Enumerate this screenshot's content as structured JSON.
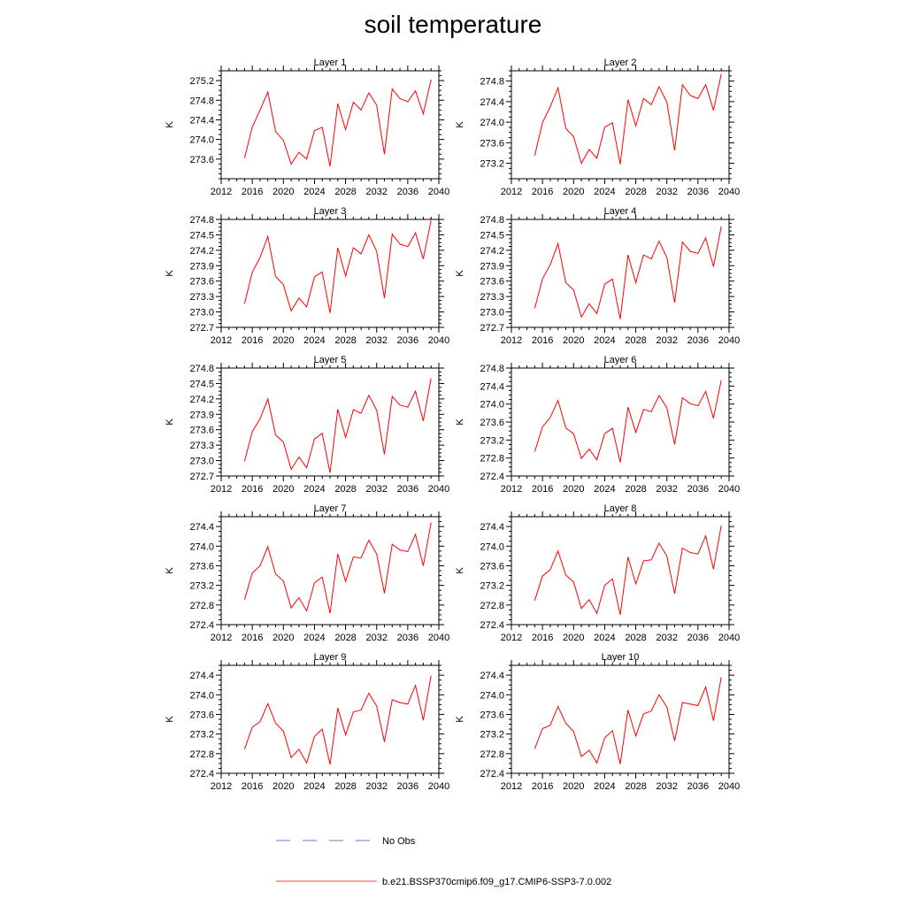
{
  "title": "soil temperature",
  "colors": {
    "model_line": "#ff0000",
    "obs_line": "#3b4fd0"
  },
  "legend": [
    {
      "label": "No Obs",
      "style": "dashed",
      "color": "#3b4fd0"
    },
    {
      "label": "b.e21.BSSP370cmip6.f09_g17.CMIP6-SSP3-7.0.002",
      "style": "solid",
      "color": "#ff0000"
    }
  ],
  "chart_data": [
    {
      "type": "line",
      "title": "Layer 1",
      "ylabel": "K",
      "xlim": [
        2012,
        2040
      ],
      "ylim": [
        273.2,
        275.4
      ],
      "xticks": [
        "2012",
        "2016",
        "2020",
        "2024",
        "2028",
        "2032",
        "2036",
        "2040"
      ],
      "yticks": [
        "273.6",
        "274.0",
        "274.4",
        "274.8",
        "275.2"
      ],
      "x": [
        2015,
        2016,
        2017,
        2018,
        2019,
        2020,
        2021,
        2022,
        2023,
        2024,
        2025,
        2026,
        2027,
        2028,
        2029,
        2030,
        2031,
        2032,
        2033,
        2034,
        2035,
        2036,
        2037,
        2038,
        2039
      ],
      "series": [
        {
          "values": [
            273.62,
            274.25,
            274.6,
            274.97,
            274.16,
            273.98,
            273.5,
            273.74,
            273.6,
            274.18,
            274.25,
            273.45,
            274.73,
            274.2,
            274.76,
            274.6,
            274.95,
            274.7,
            273.7,
            275.03,
            274.83,
            274.77,
            274.99,
            274.52,
            275.22
          ]
        }
      ]
    },
    {
      "type": "line",
      "title": "Layer 2",
      "ylabel": "K",
      "xlim": [
        2012,
        2040
      ],
      "ylim": [
        272.9,
        275.0
      ],
      "xticks": [
        "2012",
        "2016",
        "2020",
        "2024",
        "2028",
        "2032",
        "2036",
        "2040"
      ],
      "yticks": [
        "273.2",
        "273.6",
        "274.0",
        "274.4",
        "274.8"
      ],
      "x": [
        2015,
        2016,
        2017,
        2018,
        2019,
        2020,
        2021,
        2022,
        2023,
        2024,
        2025,
        2026,
        2027,
        2028,
        2029,
        2030,
        2031,
        2032,
        2033,
        2034,
        2035,
        2036,
        2037,
        2038,
        2039
      ],
      "series": [
        {
          "values": [
            273.35,
            273.99,
            274.3,
            274.67,
            273.88,
            273.72,
            273.2,
            273.47,
            273.3,
            273.9,
            273.99,
            273.18,
            274.44,
            273.93,
            274.46,
            274.34,
            274.69,
            274.39,
            273.45,
            274.73,
            274.52,
            274.46,
            274.73,
            274.23,
            274.94
          ]
        }
      ]
    },
    {
      "type": "line",
      "title": "Layer 3",
      "ylabel": "K",
      "xlim": [
        2012,
        2040
      ],
      "ylim": [
        272.7,
        274.8
      ],
      "xticks": [
        "2012",
        "2016",
        "2020",
        "2024",
        "2028",
        "2032",
        "2036",
        "2040"
      ],
      "yticks": [
        "272.7",
        "273.0",
        "273.3",
        "273.6",
        "273.9",
        "274.2",
        "274.5",
        "274.8"
      ],
      "x": [
        2015,
        2016,
        2017,
        2018,
        2019,
        2020,
        2021,
        2022,
        2023,
        2024,
        2025,
        2026,
        2027,
        2028,
        2029,
        2030,
        2031,
        2032,
        2033,
        2034,
        2035,
        2036,
        2037,
        2038,
        2039
      ],
      "series": [
        {
          "values": [
            273.16,
            273.77,
            274.06,
            274.47,
            273.69,
            273.53,
            273.02,
            273.27,
            273.1,
            273.68,
            273.78,
            272.98,
            274.25,
            273.7,
            274.25,
            274.13,
            274.5,
            274.18,
            273.27,
            274.51,
            274.32,
            274.27,
            274.54,
            274.03,
            274.78
          ]
        }
      ]
    },
    {
      "type": "line",
      "title": "Layer 4",
      "ylabel": "K",
      "xlim": [
        2012,
        2040
      ],
      "ylim": [
        272.7,
        274.8
      ],
      "xticks": [
        "2012",
        "2016",
        "2020",
        "2024",
        "2028",
        "2032",
        "2036",
        "2040"
      ],
      "yticks": [
        "272.7",
        "273.0",
        "273.3",
        "273.6",
        "273.9",
        "274.2",
        "274.5",
        "274.8"
      ],
      "x": [
        2015,
        2016,
        2017,
        2018,
        2019,
        2020,
        2021,
        2022,
        2023,
        2024,
        2025,
        2026,
        2027,
        2028,
        2029,
        2030,
        2031,
        2032,
        2033,
        2034,
        2035,
        2036,
        2037,
        2038,
        2039
      ],
      "series": [
        {
          "values": [
            273.07,
            273.64,
            273.92,
            274.33,
            273.57,
            273.43,
            272.9,
            273.16,
            272.97,
            273.54,
            273.64,
            272.86,
            274.11,
            273.57,
            274.11,
            274.03,
            274.38,
            274.06,
            273.18,
            274.36,
            274.18,
            274.14,
            274.44,
            273.88,
            274.66
          ]
        }
      ]
    },
    {
      "type": "line",
      "title": "Layer 5",
      "ylabel": "K",
      "xlim": [
        2012,
        2040
      ],
      "ylim": [
        272.7,
        274.8
      ],
      "xticks": [
        "2012",
        "2016",
        "2020",
        "2024",
        "2028",
        "2032",
        "2036",
        "2040"
      ],
      "yticks": [
        "272.7",
        "273.0",
        "273.3",
        "273.6",
        "273.9",
        "274.2",
        "274.5",
        "274.8"
      ],
      "x": [
        2015,
        2016,
        2017,
        2018,
        2019,
        2020,
        2021,
        2022,
        2023,
        2024,
        2025,
        2026,
        2027,
        2028,
        2029,
        2030,
        2031,
        2032,
        2033,
        2034,
        2035,
        2036,
        2037,
        2038,
        2039
      ],
      "series": [
        {
          "values": [
            272.99,
            273.56,
            273.81,
            274.2,
            273.5,
            273.36,
            272.83,
            273.07,
            272.86,
            273.42,
            273.53,
            272.76,
            274.0,
            273.45,
            273.99,
            273.92,
            274.27,
            273.98,
            273.12,
            274.25,
            274.08,
            274.04,
            274.35,
            273.77,
            274.6
          ]
        }
      ]
    },
    {
      "type": "line",
      "title": "Layer 6",
      "ylabel": "K",
      "xlim": [
        2012,
        2040
      ],
      "ylim": [
        272.4,
        274.8
      ],
      "xticks": [
        "2012",
        "2016",
        "2020",
        "2024",
        "2028",
        "2032",
        "2036",
        "2040"
      ],
      "yticks": [
        "272.4",
        "272.8",
        "273.2",
        "273.6",
        "274.0",
        "274.4",
        "274.8"
      ],
      "x": [
        2015,
        2016,
        2017,
        2018,
        2019,
        2020,
        2021,
        2022,
        2023,
        2024,
        2025,
        2026,
        2027,
        2028,
        2029,
        2030,
        2031,
        2032,
        2033,
        2034,
        2035,
        2036,
        2037,
        2038,
        2039
      ],
      "series": [
        {
          "values": [
            272.94,
            273.49,
            273.7,
            274.08,
            273.47,
            273.34,
            272.79,
            273.0,
            272.76,
            273.34,
            273.46,
            272.7,
            273.93,
            273.37,
            273.88,
            273.83,
            274.19,
            273.92,
            273.1,
            274.14,
            274.01,
            273.96,
            274.28,
            273.68,
            274.53
          ]
        }
      ]
    },
    {
      "type": "line",
      "title": "Layer 7",
      "ylabel": "K",
      "xlim": [
        2012,
        2040
      ],
      "ylim": [
        272.4,
        274.6
      ],
      "xticks": [
        "2012",
        "2016",
        "2020",
        "2024",
        "2028",
        "2032",
        "2036",
        "2040"
      ],
      "yticks": [
        "272.4",
        "272.8",
        "273.2",
        "273.6",
        "274.0",
        "274.4"
      ],
      "x": [
        2015,
        2016,
        2017,
        2018,
        2019,
        2020,
        2021,
        2022,
        2023,
        2024,
        2025,
        2026,
        2027,
        2028,
        2029,
        2030,
        2031,
        2032,
        2033,
        2034,
        2035,
        2036,
        2037,
        2038,
        2039
      ],
      "series": [
        {
          "values": [
            272.91,
            273.45,
            273.6,
            273.99,
            273.43,
            273.29,
            272.74,
            272.95,
            272.68,
            273.25,
            273.37,
            272.63,
            273.84,
            273.28,
            273.78,
            273.76,
            274.12,
            273.84,
            273.04,
            274.04,
            273.92,
            273.89,
            274.24,
            273.6,
            274.48
          ]
        }
      ]
    },
    {
      "type": "line",
      "title": "Layer 8",
      "ylabel": "K",
      "xlim": [
        2012,
        2040
      ],
      "ylim": [
        272.4,
        274.6
      ],
      "xticks": [
        "2012",
        "2016",
        "2020",
        "2024",
        "2028",
        "2032",
        "2036",
        "2040"
      ],
      "yticks": [
        "272.4",
        "272.8",
        "273.2",
        "273.6",
        "274.0",
        "274.4"
      ],
      "x": [
        2015,
        2016,
        2017,
        2018,
        2019,
        2020,
        2021,
        2022,
        2023,
        2024,
        2025,
        2026,
        2027,
        2028,
        2029,
        2030,
        2031,
        2032,
        2033,
        2034,
        2035,
        2036,
        2037,
        2038,
        2039
      ],
      "series": [
        {
          "values": [
            272.89,
            273.39,
            273.52,
            273.9,
            273.41,
            273.27,
            272.73,
            272.91,
            272.63,
            273.2,
            273.33,
            272.6,
            273.78,
            273.23,
            273.7,
            273.72,
            274.06,
            273.8,
            273.03,
            273.96,
            273.87,
            273.84,
            274.21,
            273.53,
            274.42
          ]
        }
      ]
    },
    {
      "type": "line",
      "title": "Layer 9",
      "ylabel": "K",
      "xlim": [
        2012,
        2040
      ],
      "ylim": [
        272.4,
        274.6
      ],
      "xticks": [
        "2012",
        "2016",
        "2020",
        "2024",
        "2028",
        "2032",
        "2036",
        "2040"
      ],
      "yticks": [
        "272.4",
        "272.8",
        "273.2",
        "273.6",
        "274.0",
        "274.4"
      ],
      "x": [
        2015,
        2016,
        2017,
        2018,
        2019,
        2020,
        2021,
        2022,
        2023,
        2024,
        2025,
        2026,
        2027,
        2028,
        2029,
        2030,
        2031,
        2032,
        2033,
        2034,
        2035,
        2036,
        2037,
        2038,
        2039
      ],
      "series": [
        {
          "values": [
            272.89,
            273.34,
            273.45,
            273.82,
            273.42,
            273.26,
            272.72,
            272.89,
            272.61,
            273.15,
            273.3,
            272.58,
            273.73,
            273.18,
            273.65,
            273.69,
            274.03,
            273.77,
            273.04,
            273.9,
            273.84,
            273.81,
            274.19,
            273.48,
            274.39
          ]
        }
      ]
    },
    {
      "type": "line",
      "title": "Layer 10",
      "ylabel": "K",
      "xlim": [
        2012,
        2040
      ],
      "ylim": [
        272.4,
        274.6
      ],
      "xticks": [
        "2012",
        "2016",
        "2020",
        "2024",
        "2028",
        "2032",
        "2036",
        "2040"
      ],
      "yticks": [
        "272.4",
        "272.8",
        "273.2",
        "273.6",
        "274.0",
        "274.4"
      ],
      "x": [
        2015,
        2016,
        2017,
        2018,
        2019,
        2020,
        2021,
        2022,
        2023,
        2024,
        2025,
        2026,
        2027,
        2028,
        2029,
        2030,
        2031,
        2032,
        2033,
        2034,
        2035,
        2036,
        2037,
        2038,
        2039
      ],
      "series": [
        {
          "values": [
            272.9,
            273.31,
            273.38,
            273.76,
            273.42,
            273.25,
            272.74,
            272.87,
            272.61,
            273.12,
            273.27,
            272.59,
            273.69,
            273.16,
            273.61,
            273.67,
            274.0,
            273.75,
            273.06,
            273.84,
            273.81,
            273.78,
            274.16,
            273.47,
            274.36
          ]
        }
      ]
    }
  ]
}
